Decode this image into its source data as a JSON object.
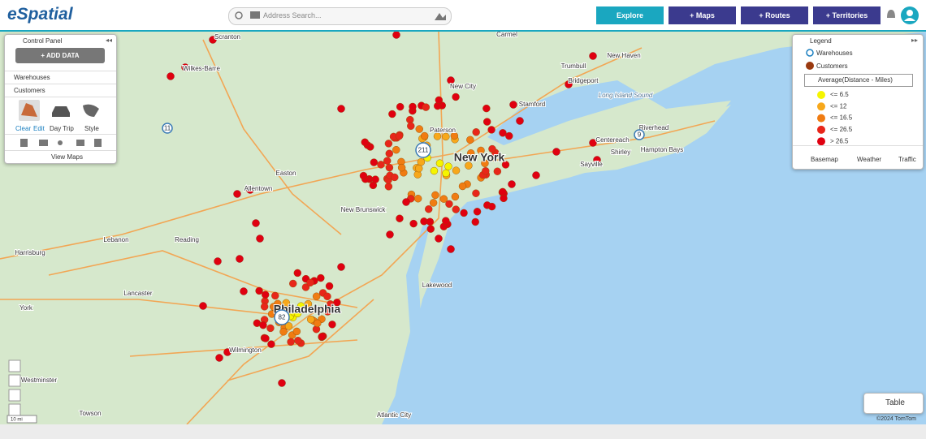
{
  "header": {
    "logo": "eSpatial",
    "search_placeholder": "Address Search...",
    "nav": [
      "Explore",
      "+ Maps",
      "+ Routes",
      "+ Territories"
    ]
  },
  "control_panel": {
    "title": "Control Panel",
    "add_data": "ADD DATA",
    "layers": [
      "Warehouses",
      "Customers"
    ],
    "tools": [
      "Clear",
      "Edit",
      "Day Trip",
      "Style"
    ],
    "view_maps": "View Maps"
  },
  "legend": {
    "title": "Legend",
    "layers": [
      "Warehouses",
      "Customers"
    ],
    "field": "Average(Distance - Miles)",
    "classes": [
      {
        "label": "<= 6.5",
        "color": "#f5f500"
      },
      {
        "label": "<= 12",
        "color": "#f7a81b"
      },
      {
        "label": "<= 16.5",
        "color": "#f07c12"
      },
      {
        "label": "<= 26.5",
        "color": "#e8261a"
      },
      {
        "label": "> 26.5",
        "color": "#e00010"
      }
    ],
    "footer": [
      "Basemap",
      "Weather",
      "Traffic"
    ]
  },
  "map": {
    "labels": [
      "Scranton",
      "Wilkes-Barre",
      "Carmel",
      "New Haven",
      "Trumbull",
      "Bridgeport",
      "Stamford",
      "Long Island Sound",
      "Riverhead",
      "Centereach",
      "Shirley",
      "Hampton Bays",
      "Sayville",
      "New City",
      "Paterson",
      "New York",
      "Easton",
      "Allentown",
      "New Brunswick",
      "Reading",
      "Lebanon",
      "Harrisburg",
      "Lancaster",
      "Lakewood",
      "Philadelphia",
      "York",
      "Wilmington",
      "Westminster",
      "Towson",
      "Atlantic City"
    ],
    "shields": [
      "211",
      "82",
      "11",
      "9"
    ],
    "scale": "10 mi",
    "attribution": "©2024 TomTom"
  },
  "table_button": "Table"
}
